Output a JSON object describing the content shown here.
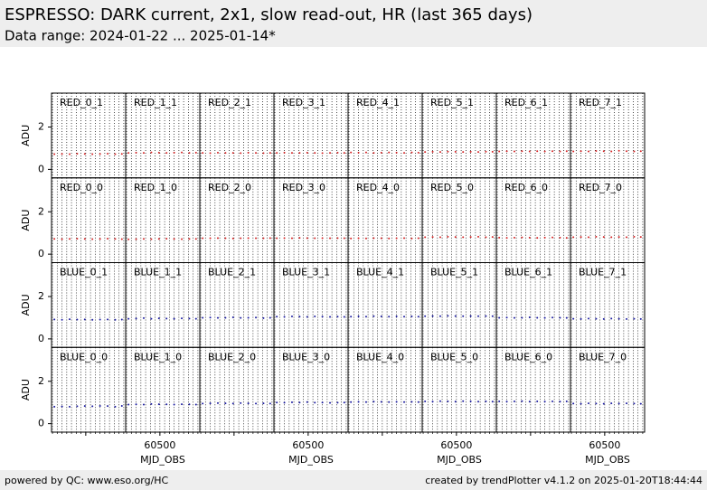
{
  "header": {
    "title": "ESPRESSO: DARK current, 2x1, slow read-out, HR (last 365 days)",
    "subtitle": "Data range: 2024-01-22 ... 2025-01-14*"
  },
  "footer": {
    "left": "powered by QC: www.eso.org/HC",
    "right": "created by trendPlotter v4.1.2 on 2025-01-20T18:44:44"
  },
  "chart_data": {
    "type": "scatter",
    "ylabel": "ADU",
    "xlabel": "MJD_OBS",
    "xlim": [
      60320,
      60710
    ],
    "ylim": [
      -0.4,
      3.6
    ],
    "xticks": [
      60500
    ],
    "yticks": [
      0,
      2
    ],
    "xgridlines": [
      60325,
      60350,
      60375,
      60400,
      60425,
      60450,
      60475,
      60500,
      60525,
      60550,
      60575,
      60600,
      60625,
      60650,
      60675,
      60700
    ],
    "x": [
      60335,
      60375,
      60415,
      60455,
      60495,
      60535,
      60575,
      60615,
      60655,
      60690
    ],
    "panels": [
      {
        "title": "RED_0_1",
        "color": "#d62728",
        "values": [
          0.72,
          0.73,
          0.72,
          0.74,
          0.73,
          0.72,
          0.73,
          0.74,
          0.72,
          0.73
        ]
      },
      {
        "title": "RED_1_1",
        "color": "#d62728",
        "values": [
          0.78,
          0.79,
          0.78,
          0.8,
          0.79,
          0.78,
          0.79,
          0.8,
          0.78,
          0.79
        ]
      },
      {
        "title": "RED_2_1",
        "color": "#d62728",
        "values": [
          0.78,
          0.77,
          0.79,
          0.78,
          0.78,
          0.77,
          0.79,
          0.78,
          0.77,
          0.78
        ]
      },
      {
        "title": "RED_3_1",
        "color": "#d62728",
        "values": [
          0.78,
          0.79,
          0.78,
          0.78,
          0.79,
          0.78,
          0.77,
          0.78,
          0.79,
          0.78
        ]
      },
      {
        "title": "RED_4_1",
        "color": "#d62728",
        "values": [
          0.8,
          0.79,
          0.8,
          0.78,
          0.79,
          0.8,
          0.79,
          0.78,
          0.8,
          0.79
        ]
      },
      {
        "title": "RED_5_1",
        "color": "#d62728",
        "values": [
          0.82,
          0.83,
          0.82,
          0.84,
          0.83,
          0.82,
          0.83,
          0.82,
          0.84,
          0.83
        ]
      },
      {
        "title": "RED_6_1",
        "color": "#d62728",
        "values": [
          0.85,
          0.86,
          0.85,
          0.86,
          0.85,
          0.86,
          0.85,
          0.86,
          0.85,
          0.86
        ]
      },
      {
        "title": "RED_7_1",
        "color": "#d62728",
        "values": [
          0.85,
          0.86,
          0.85,
          0.87,
          0.86,
          0.85,
          0.88,
          0.86,
          0.85,
          0.86
        ]
      },
      {
        "title": "RED_0_0",
        "color": "#d62728",
        "values": [
          0.72,
          0.71,
          0.72,
          0.73,
          0.72,
          0.71,
          0.72,
          0.73,
          0.72,
          0.71
        ]
      },
      {
        "title": "RED_1_0",
        "color": "#d62728",
        "values": [
          0.7,
          0.71,
          0.72,
          0.71,
          0.72,
          0.73,
          0.72,
          0.71,
          0.72,
          0.72
        ]
      },
      {
        "title": "RED_2_0",
        "color": "#d62728",
        "values": [
          0.75,
          0.75,
          0.76,
          0.75,
          0.74,
          0.75,
          0.76,
          0.75,
          0.75,
          0.76
        ]
      },
      {
        "title": "RED_3_0",
        "color": "#d62728",
        "values": [
          0.75,
          0.76,
          0.75,
          0.77,
          0.76,
          0.75,
          0.76,
          0.75,
          0.76,
          0.75
        ]
      },
      {
        "title": "RED_4_0",
        "color": "#d62728",
        "values": [
          0.74,
          0.75,
          0.74,
          0.76,
          0.75,
          0.74,
          0.75,
          0.76,
          0.74,
          0.75
        ]
      },
      {
        "title": "RED_5_0",
        "color": "#d62728",
        "values": [
          0.8,
          0.81,
          0.8,
          0.82,
          0.81,
          0.8,
          0.81,
          0.82,
          0.8,
          0.81
        ]
      },
      {
        "title": "RED_6_0",
        "color": "#d62728",
        "values": [
          0.78,
          0.77,
          0.78,
          0.79,
          0.78,
          0.77,
          0.78,
          0.79,
          0.78,
          0.77
        ]
      },
      {
        "title": "RED_7_0",
        "color": "#d62728",
        "values": [
          0.8,
          0.81,
          0.8,
          0.82,
          0.81,
          0.8,
          0.81,
          0.8,
          0.82,
          0.81
        ]
      },
      {
        "title": "BLUE_0_1",
        "color": "#1c1ca0",
        "values": [
          0.92,
          0.9,
          0.93,
          0.91,
          0.92,
          0.9,
          0.91,
          0.92,
          0.9,
          0.91
        ]
      },
      {
        "title": "BLUE_1_1",
        "color": "#1c1ca0",
        "values": [
          0.95,
          0.96,
          0.98,
          0.95,
          0.97,
          0.96,
          0.95,
          0.97,
          0.96,
          0.95
        ]
      },
      {
        "title": "BLUE_2_1",
        "color": "#1c1ca0",
        "values": [
          1.0,
          1.01,
          0.99,
          1.0,
          1.02,
          0.99,
          1.0,
          1.01,
          0.98,
          1.0
        ]
      },
      {
        "title": "BLUE_3_1",
        "color": "#1c1ca0",
        "values": [
          1.05,
          1.04,
          1.06,
          1.05,
          1.04,
          1.06,
          1.05,
          1.04,
          1.05,
          1.04
        ]
      },
      {
        "title": "BLUE_4_1",
        "color": "#1c1ca0",
        "values": [
          1.05,
          1.06,
          1.05,
          1.07,
          1.06,
          1.05,
          1.06,
          1.05,
          1.06,
          1.05
        ]
      },
      {
        "title": "BLUE_5_1",
        "color": "#1c1ca0",
        "values": [
          1.07,
          1.08,
          1.07,
          1.09,
          1.08,
          1.07,
          1.08,
          1.07,
          1.08,
          1.07
        ]
      },
      {
        "title": "BLUE_6_1",
        "color": "#1c1ca0",
        "values": [
          1.0,
          1.01,
          0.99,
          1.0,
          1.02,
          1.0,
          0.99,
          1.01,
          1.0,
          0.99
        ]
      },
      {
        "title": "BLUE_7_1",
        "color": "#1c1ca0",
        "values": [
          0.95,
          0.94,
          0.96,
          0.95,
          0.94,
          0.96,
          0.95,
          0.94,
          0.95,
          0.94
        ]
      },
      {
        "title": "BLUE_0_0",
        "color": "#1c1ca0",
        "values": [
          0.8,
          0.81,
          0.8,
          0.82,
          0.83,
          0.82,
          0.84,
          0.83,
          0.8,
          0.84
        ]
      },
      {
        "title": "BLUE_1_0",
        "color": "#1c1ca0",
        "values": [
          0.9,
          0.91,
          0.9,
          0.93,
          0.92,
          0.91,
          0.9,
          0.92,
          0.91,
          0.9
        ]
      },
      {
        "title": "BLUE_2_0",
        "color": "#1c1ca0",
        "values": [
          0.95,
          0.96,
          0.97,
          0.96,
          0.95,
          0.97,
          0.96,
          0.95,
          0.96,
          0.95
        ]
      },
      {
        "title": "BLUE_3_0",
        "color": "#1c1ca0",
        "values": [
          1.0,
          0.99,
          1.01,
          1.0,
          1.02,
          0.99,
          1.0,
          0.98,
          0.99,
          1.0
        ]
      },
      {
        "title": "BLUE_4_0",
        "color": "#1c1ca0",
        "values": [
          1.02,
          1.03,
          1.02,
          1.04,
          1.03,
          1.02,
          1.03,
          1.02,
          1.03,
          1.02
        ]
      },
      {
        "title": "BLUE_5_0",
        "color": "#1c1ca0",
        "values": [
          1.05,
          1.04,
          1.06,
          1.05,
          1.04,
          1.06,
          1.05,
          1.04,
          1.05,
          1.04
        ]
      },
      {
        "title": "BLUE_6_0",
        "color": "#1c1ca0",
        "values": [
          1.05,
          1.04,
          1.05,
          1.06,
          1.04,
          1.05,
          1.04,
          1.05,
          1.04,
          1.05
        ]
      },
      {
        "title": "BLUE_7_0",
        "color": "#1c1ca0",
        "values": [
          0.95,
          0.94,
          0.96,
          0.95,
          0.94,
          0.96,
          0.95,
          0.96,
          0.95,
          0.94
        ]
      }
    ]
  }
}
